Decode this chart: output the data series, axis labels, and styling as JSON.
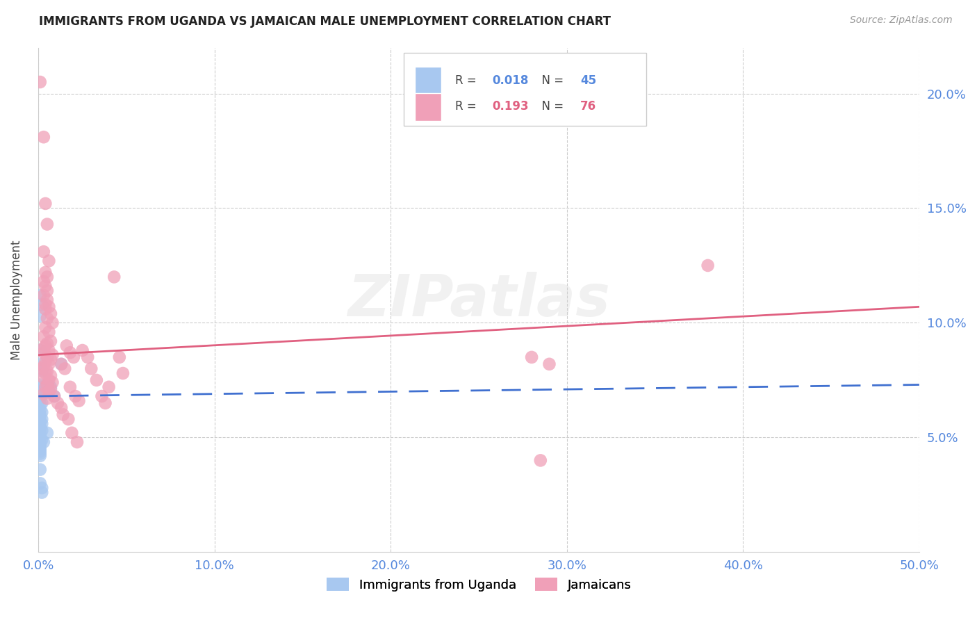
{
  "title": "IMMIGRANTS FROM UGANDA VS JAMAICAN MALE UNEMPLOYMENT CORRELATION CHART",
  "source": "Source: ZipAtlas.com",
  "ylabel": "Male Unemployment",
  "xlim": [
    0.0,
    0.5
  ],
  "ylim": [
    0.0,
    0.22
  ],
  "yticks": [
    0.05,
    0.1,
    0.15,
    0.2
  ],
  "ytick_labels": [
    "5.0%",
    "10.0%",
    "15.0%",
    "20.0%"
  ],
  "xticks": [
    0.0,
    0.1,
    0.2,
    0.3,
    0.4,
    0.5
  ],
  "xtick_labels": [
    "0.0%",
    "10.0%",
    "20.0%",
    "30.0%",
    "40.0%",
    "50.0%"
  ],
  "uganda_color": "#a8c8f0",
  "jamaican_color": "#f0a0b8",
  "uganda_line_color": "#4070d0",
  "jamaican_line_color": "#e06080",
  "legend_label_uganda": "Immigrants from Uganda",
  "legend_label_jamaican": "Jamaicans",
  "R_uganda": 0.018,
  "N_uganda": 45,
  "R_jamaican": 0.193,
  "N_jamaican": 76,
  "watermark": "ZIPatlas",
  "background_color": "#ffffff",
  "grid_color": "#cccccc",
  "axis_label_color": "#5588dd",
  "uganda_scatter": [
    [
      0.001,
      0.112
    ],
    [
      0.002,
      0.108
    ],
    [
      0.001,
      0.103
    ],
    [
      0.001,
      0.088
    ],
    [
      0.001,
      0.082
    ],
    [
      0.002,
      0.079
    ],
    [
      0.001,
      0.073
    ],
    [
      0.002,
      0.072
    ],
    [
      0.001,
      0.071
    ],
    [
      0.001,
      0.07
    ],
    [
      0.002,
      0.069
    ],
    [
      0.001,
      0.068
    ],
    [
      0.001,
      0.067
    ],
    [
      0.002,
      0.065
    ],
    [
      0.001,
      0.064
    ],
    [
      0.001,
      0.062
    ],
    [
      0.002,
      0.061
    ],
    [
      0.001,
      0.06
    ],
    [
      0.001,
      0.059
    ],
    [
      0.002,
      0.058
    ],
    [
      0.001,
      0.057
    ],
    [
      0.002,
      0.056
    ],
    [
      0.001,
      0.055
    ],
    [
      0.001,
      0.054
    ],
    [
      0.002,
      0.053
    ],
    [
      0.001,
      0.052
    ],
    [
      0.001,
      0.051
    ],
    [
      0.001,
      0.05
    ],
    [
      0.002,
      0.049
    ],
    [
      0.001,
      0.048
    ],
    [
      0.001,
      0.047
    ],
    [
      0.001,
      0.046
    ],
    [
      0.001,
      0.045
    ],
    [
      0.001,
      0.044
    ],
    [
      0.001,
      0.043
    ],
    [
      0.001,
      0.042
    ],
    [
      0.001,
      0.036
    ],
    [
      0.001,
      0.03
    ],
    [
      0.002,
      0.026
    ],
    [
      0.007,
      0.072
    ],
    [
      0.009,
      0.068
    ],
    [
      0.013,
      0.082
    ],
    [
      0.005,
      0.052
    ],
    [
      0.003,
      0.048
    ],
    [
      0.002,
      0.028
    ]
  ],
  "jamaican_scatter": [
    [
      0.001,
      0.205
    ],
    [
      0.003,
      0.181
    ],
    [
      0.004,
      0.152
    ],
    [
      0.005,
      0.143
    ],
    [
      0.003,
      0.131
    ],
    [
      0.006,
      0.127
    ],
    [
      0.004,
      0.122
    ],
    [
      0.005,
      0.12
    ],
    [
      0.003,
      0.118
    ],
    [
      0.004,
      0.116
    ],
    [
      0.005,
      0.114
    ],
    [
      0.003,
      0.112
    ],
    [
      0.005,
      0.11
    ],
    [
      0.004,
      0.108
    ],
    [
      0.006,
      0.107
    ],
    [
      0.004,
      0.106
    ],
    [
      0.007,
      0.104
    ],
    [
      0.005,
      0.102
    ],
    [
      0.008,
      0.1
    ],
    [
      0.004,
      0.098
    ],
    [
      0.006,
      0.096
    ],
    [
      0.003,
      0.094
    ],
    [
      0.007,
      0.092
    ],
    [
      0.005,
      0.091
    ],
    [
      0.004,
      0.09
    ],
    [
      0.003,
      0.089
    ],
    [
      0.006,
      0.088
    ],
    [
      0.003,
      0.087
    ],
    [
      0.008,
      0.086
    ],
    [
      0.005,
      0.085
    ],
    [
      0.007,
      0.084
    ],
    [
      0.004,
      0.083
    ],
    [
      0.006,
      0.082
    ],
    [
      0.003,
      0.081
    ],
    [
      0.002,
      0.08
    ],
    [
      0.005,
      0.079
    ],
    [
      0.004,
      0.078
    ],
    [
      0.007,
      0.077
    ],
    [
      0.003,
      0.076
    ],
    [
      0.006,
      0.075
    ],
    [
      0.008,
      0.074
    ],
    [
      0.005,
      0.073
    ],
    [
      0.004,
      0.072
    ],
    [
      0.007,
      0.071
    ],
    [
      0.006,
      0.07
    ],
    [
      0.003,
      0.069
    ],
    [
      0.009,
      0.068
    ],
    [
      0.005,
      0.067
    ],
    [
      0.011,
      0.065
    ],
    [
      0.013,
      0.063
    ],
    [
      0.016,
      0.09
    ],
    [
      0.018,
      0.087
    ],
    [
      0.02,
      0.085
    ],
    [
      0.013,
      0.082
    ],
    [
      0.015,
      0.08
    ],
    [
      0.018,
      0.072
    ],
    [
      0.021,
      0.068
    ],
    [
      0.023,
      0.066
    ],
    [
      0.014,
      0.06
    ],
    [
      0.017,
      0.058
    ],
    [
      0.019,
      0.052
    ],
    [
      0.022,
      0.048
    ],
    [
      0.025,
      0.088
    ],
    [
      0.028,
      0.085
    ],
    [
      0.03,
      0.08
    ],
    [
      0.033,
      0.075
    ],
    [
      0.036,
      0.068
    ],
    [
      0.038,
      0.065
    ],
    [
      0.04,
      0.072
    ],
    [
      0.043,
      0.12
    ],
    [
      0.046,
      0.085
    ],
    [
      0.048,
      0.078
    ],
    [
      0.28,
      0.085
    ],
    [
      0.29,
      0.082
    ],
    [
      0.38,
      0.125
    ],
    [
      0.285,
      0.04
    ]
  ],
  "uganda_trend": [
    0.0,
    0.5,
    0.068,
    0.073
  ],
  "jamaican_trend": [
    0.0,
    0.5,
    0.086,
    0.107
  ]
}
